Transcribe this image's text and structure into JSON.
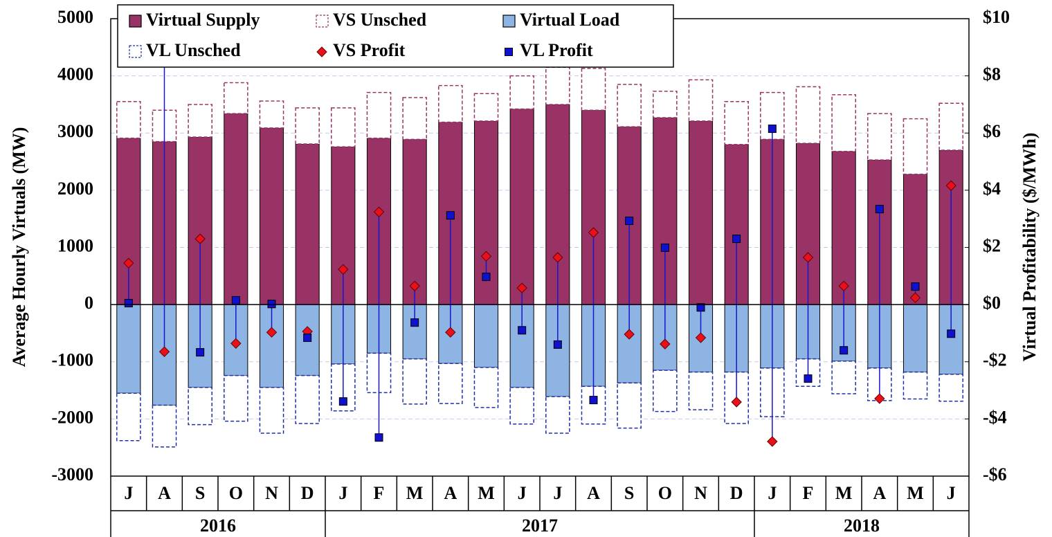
{
  "chart_data": {
    "type": "bar",
    "y_label": "Average Hourly Virtuals (MW)",
    "y2_label": "Virtual Profitability ($/MWh)",
    "categories": [
      "J",
      "A",
      "S",
      "O",
      "N",
      "D",
      "J",
      "F",
      "M",
      "A",
      "M",
      "J",
      "J",
      "A",
      "S",
      "O",
      "N",
      "D",
      "J",
      "F",
      "M",
      "A",
      "M",
      "J"
    ],
    "groups": [
      {
        "name": "2016",
        "count": 6
      },
      {
        "name": "2017",
        "count": 12
      },
      {
        "name": "2018",
        "count": 6
      }
    ],
    "ylim": [
      -3000,
      5000
    ],
    "yticks": [
      -3000,
      -2000,
      -1000,
      0,
      1000,
      2000,
      3000,
      4000,
      5000
    ],
    "y2lim": [
      -6,
      10
    ],
    "y2ticks": [
      {
        "value": -6,
        "label": "-$6"
      },
      {
        "value": -4,
        "label": "-$4"
      },
      {
        "value": -2,
        "label": "-$2"
      },
      {
        "value": 0,
        "label": "$0"
      },
      {
        "value": 2,
        "label": "$2"
      },
      {
        "value": 4,
        "label": "$4"
      },
      {
        "value": 6,
        "label": "$6"
      },
      {
        "value": 8,
        "label": "$8"
      },
      {
        "value": 10,
        "label": "$10"
      }
    ],
    "grid": true,
    "legend": "upper left",
    "series": [
      {
        "name": "Virtual Supply",
        "color": "#993366",
        "type": "bar",
        "style": "solid",
        "stack": "supply",
        "values": [
          2910,
          2850,
          2930,
          3340,
          3090,
          2810,
          2760,
          2910,
          2890,
          3190,
          3210,
          3420,
          3500,
          3400,
          3110,
          3270,
          3210,
          2800,
          2890,
          2820,
          2680,
          2530,
          2280,
          2700
        ]
      },
      {
        "name": "VS Unsched",
        "color": "#993366",
        "type": "bar",
        "style": "dashed",
        "stack": "supply",
        "values": [
          640,
          550,
          570,
          540,
          470,
          630,
          680,
          800,
          730,
          640,
          480,
          580,
          650,
          730,
          740,
          460,
          720,
          750,
          820,
          990,
          990,
          810,
          970,
          820
        ]
      },
      {
        "name": "Virtual Load",
        "color": "#8db4e2",
        "type": "bar",
        "style": "solid",
        "stack": "load",
        "values": [
          -1550,
          -1760,
          -1450,
          -1240,
          -1450,
          -1240,
          -1040,
          -850,
          -950,
          -1030,
          -1100,
          -1450,
          -1610,
          -1430,
          -1370,
          -1150,
          -1180,
          -1180,
          -1110,
          -950,
          -990,
          -1110,
          -1180,
          -1220
        ]
      },
      {
        "name": "VL Unsched",
        "color": "#1f2fa8",
        "type": "bar",
        "style": "dashed",
        "stack": "load",
        "values": [
          -830,
          -730,
          -650,
          -800,
          -800,
          -840,
          -820,
          -690,
          -790,
          -700,
          -700,
          -640,
          -640,
          -660,
          -790,
          -720,
          -660,
          -900,
          -850,
          -480,
          -570,
          -570,
          -470,
          -470
        ]
      },
      {
        "name": "VS Profit",
        "color": "#e8101a",
        "type": "scatter",
        "marker": "diamond",
        "axis": "y2",
        "values": [
          1.45,
          -1.65,
          2.3,
          -1.36,
          -0.97,
          -0.94,
          1.23,
          3.24,
          0.65,
          -0.97,
          1.69,
          0.58,
          1.65,
          2.52,
          -1.04,
          -1.38,
          -1.16,
          -3.41,
          -4.79,
          1.65,
          0.65,
          -3.29,
          0.24,
          4.16
        ]
      },
      {
        "name": "VL Profit",
        "color": "#1010d0",
        "type": "scatter",
        "marker": "square",
        "axis": "y2",
        "values": [
          0.05,
          11,
          -1.67,
          0.15,
          0.02,
          -1.16,
          -3.39,
          -4.65,
          -0.63,
          3.12,
          0.97,
          -0.9,
          -1.4,
          -3.34,
          2.93,
          1.99,
          -0.1,
          2.3,
          6.15,
          -2.59,
          -1.6,
          3.34,
          0.63,
          -1.02
        ]
      }
    ]
  }
}
